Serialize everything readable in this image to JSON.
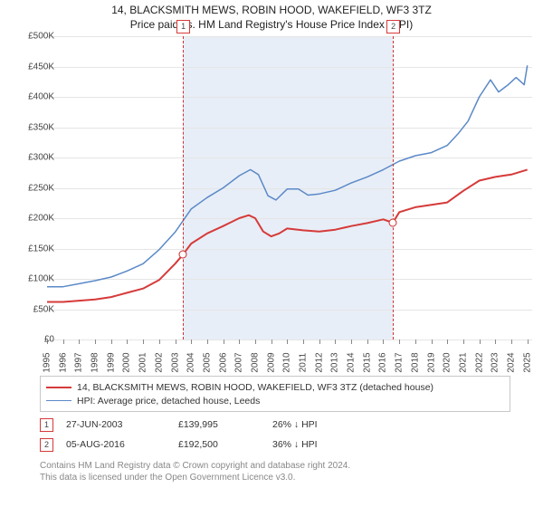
{
  "title": {
    "line1": "14, BLACKSMITH MEWS, ROBIN HOOD, WAKEFIELD, WF3 3TZ",
    "line2": "Price paid vs. HM Land Registry's House Price Index (HPI)",
    "fontsize": 12,
    "color": "#222222"
  },
  "chart": {
    "type": "line",
    "background_color": "#ffffff",
    "plot_area_color": "#ffffff",
    "grid_color": "#e5e5e5",
    "axis_color": "#888888",
    "x": {
      "ticks": [
        "1995",
        "1996",
        "1997",
        "1998",
        "1999",
        "2000",
        "2001",
        "2002",
        "2003",
        "2004",
        "2005",
        "2006",
        "2007",
        "2008",
        "2009",
        "2010",
        "2011",
        "2012",
        "2013",
        "2014",
        "2015",
        "2016",
        "2017",
        "2018",
        "2019",
        "2020",
        "2021",
        "2022",
        "2023",
        "2024",
        "2025"
      ],
      "label_fontsize": 10,
      "rotation": -90
    },
    "y": {
      "ticks": [
        "£0",
        "£50K",
        "£100K",
        "£150K",
        "£200K",
        "£250K",
        "£300K",
        "£350K",
        "£400K",
        "£450K",
        "£500K"
      ],
      "values": [
        0,
        50000,
        100000,
        150000,
        200000,
        250000,
        300000,
        350000,
        400000,
        450000,
        500000
      ],
      "ylim": [
        0,
        500000
      ],
      "label_fontsize": 10,
      "tick_step": 50000
    },
    "shaded_region": {
      "x_start_year": 2003.49,
      "x_end_year": 2016.6,
      "color": "#e8eef7"
    },
    "sale_vlines": {
      "color": "#cc3333",
      "dash": "3,3",
      "width": 1
    },
    "series": [
      {
        "id": "property",
        "label": "14, BLACKSMITH MEWS, ROBIN HOOD, WAKEFIELD, WF3 3TZ (detached house)",
        "color": "#d63a3a",
        "line_width": 2,
        "points": [
          [
            1995.0,
            62000
          ],
          [
            1996.0,
            62000
          ],
          [
            1997.0,
            64000
          ],
          [
            1998.0,
            66000
          ],
          [
            1999.0,
            70000
          ],
          [
            2000.0,
            77000
          ],
          [
            2001.0,
            84000
          ],
          [
            2002.0,
            98000
          ],
          [
            2003.0,
            125000
          ],
          [
            2003.49,
            139995
          ],
          [
            2004.0,
            158000
          ],
          [
            2005.0,
            175000
          ],
          [
            2006.0,
            187000
          ],
          [
            2007.0,
            200000
          ],
          [
            2007.6,
            205000
          ],
          [
            2008.0,
            200000
          ],
          [
            2008.5,
            178000
          ],
          [
            2009.0,
            170000
          ],
          [
            2009.5,
            175000
          ],
          [
            2010.0,
            183000
          ],
          [
            2011.0,
            180000
          ],
          [
            2012.0,
            178000
          ],
          [
            2013.0,
            181000
          ],
          [
            2014.0,
            187000
          ],
          [
            2015.0,
            192000
          ],
          [
            2016.0,
            198000
          ],
          [
            2016.6,
            192500
          ],
          [
            2017.0,
            210000
          ],
          [
            2018.0,
            218000
          ],
          [
            2019.0,
            222000
          ],
          [
            2020.0,
            226000
          ],
          [
            2021.0,
            245000
          ],
          [
            2022.0,
            262000
          ],
          [
            2023.0,
            268000
          ],
          [
            2024.0,
            272000
          ],
          [
            2025.0,
            280000
          ]
        ]
      },
      {
        "id": "hpi",
        "label": "HPI: Average price, detached house, Leeds",
        "color": "#5b89c8",
        "line_width": 1.5,
        "points": [
          [
            1995.0,
            87000
          ],
          [
            1996.0,
            87000
          ],
          [
            1997.0,
            92000
          ],
          [
            1998.0,
            97000
          ],
          [
            1999.0,
            103000
          ],
          [
            2000.0,
            113000
          ],
          [
            2001.0,
            125000
          ],
          [
            2002.0,
            148000
          ],
          [
            2003.0,
            177000
          ],
          [
            2004.0,
            215000
          ],
          [
            2005.0,
            234000
          ],
          [
            2006.0,
            250000
          ],
          [
            2007.0,
            270000
          ],
          [
            2007.7,
            280000
          ],
          [
            2008.2,
            272000
          ],
          [
            2008.8,
            237000
          ],
          [
            2009.3,
            230000
          ],
          [
            2010.0,
            248000
          ],
          [
            2010.7,
            248000
          ],
          [
            2011.3,
            238000
          ],
          [
            2012.0,
            240000
          ],
          [
            2013.0,
            246000
          ],
          [
            2014.0,
            258000
          ],
          [
            2015.0,
            268000
          ],
          [
            2016.0,
            280000
          ],
          [
            2017.0,
            294000
          ],
          [
            2018.0,
            303000
          ],
          [
            2019.0,
            308000
          ],
          [
            2020.0,
            320000
          ],
          [
            2020.7,
            340000
          ],
          [
            2021.3,
            360000
          ],
          [
            2022.0,
            400000
          ],
          [
            2022.7,
            428000
          ],
          [
            2023.2,
            408000
          ],
          [
            2023.8,
            420000
          ],
          [
            2024.3,
            432000
          ],
          [
            2024.8,
            420000
          ],
          [
            2025.0,
            452000
          ]
        ]
      }
    ],
    "sales": [
      {
        "marker": "1",
        "date": "27-JUN-2003",
        "year_frac": 2003.49,
        "price": 139995,
        "price_label": "£139,995",
        "vs_hpi": "26% ↓ HPI"
      },
      {
        "marker": "2",
        "date": "05-AUG-2016",
        "year_frac": 2016.6,
        "price": 192500,
        "price_label": "£192,500",
        "vs_hpi": "36% ↓ HPI"
      }
    ],
    "sale_dot_style": {
      "radius": 4,
      "fill": "#ffffff",
      "stroke": "#cc2b2b",
      "stroke_width": 1
    },
    "marker_box_style": {
      "size": 13,
      "border_color": "#d63a3a",
      "background": "#ffffff",
      "fontsize": 9
    }
  },
  "legend": {
    "border_color": "#c8c8c8",
    "fontsize": 10.5
  },
  "footnote": {
    "line1": "Contains HM Land Registry data © Crown copyright and database right 2024.",
    "line2": "This data is licensed under the Open Government Licence v3.0.",
    "color": "#888888",
    "fontsize": 10
  }
}
